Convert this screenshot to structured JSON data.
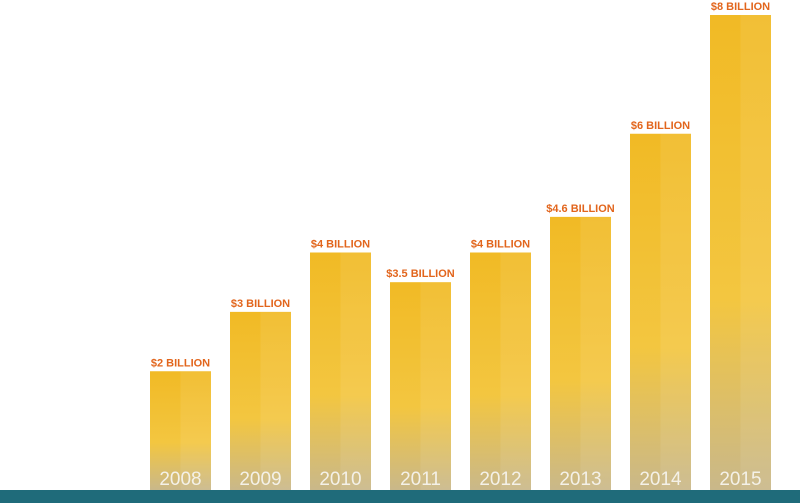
{
  "chart_data": {
    "type": "bar",
    "categories": [
      "2008",
      "2009",
      "2010",
      "2011",
      "2012",
      "2013",
      "2014",
      "2015"
    ],
    "values": [
      2,
      3,
      4,
      3.5,
      4,
      4.6,
      6,
      8
    ],
    "value_labels": [
      "$2 BILLION",
      "$3 BILLION",
      "$4 BILLION",
      "$3.5 BILLION",
      "$4 BILLION",
      "$4.6 BILLION",
      "$6 BILLION",
      "$8 BILLION"
    ],
    "color": "#f0b92a"
  }
}
